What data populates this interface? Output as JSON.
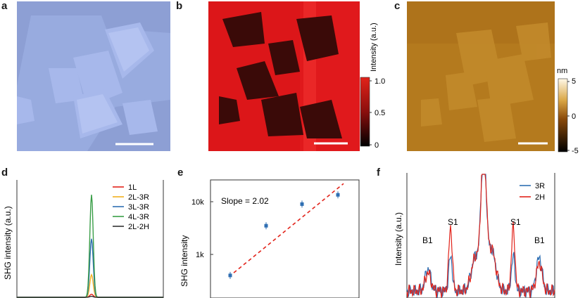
{
  "panels": {
    "a": {
      "label": "a"
    },
    "b": {
      "label": "b",
      "colorbar_title": "Intensity (a.u.)",
      "ticks": [
        "1.0",
        "0.5",
        "0"
      ]
    },
    "c": {
      "label": "c",
      "colorbar_title": "nm",
      "ticks": [
        "5",
        "0",
        "-5"
      ]
    },
    "d": {
      "label": "d"
    },
    "e": {
      "label": "e"
    },
    "f": {
      "label": "f"
    }
  },
  "colors": {
    "optical_bg": "#8d9fd4",
    "raman_bg": "#e0191c",
    "afm_bg": "#b47a1e",
    "series_red": "#e2231a",
    "series_orange": "#f2b01e",
    "series_blue": "#2f6fb3",
    "series_green": "#3a9e48",
    "series_dark": "#333333"
  },
  "chart_data": [
    {
      "panel": "d",
      "type": "line",
      "xlabel": "",
      "ylabel": "SHG intensity (a.u.)",
      "series": [
        {
          "name": "1L",
          "color": "#e2231a",
          "peak": 0.03
        },
        {
          "name": "2L-3R",
          "color": "#f2b01e",
          "peak": 0.22
        },
        {
          "name": "3L-3R",
          "color": "#2f6fb3",
          "peak": 0.57
        },
        {
          "name": "4L-3R",
          "color": "#3a9e48",
          "peak": 1.0
        },
        {
          "name": "2L-2H",
          "color": "#333333",
          "peak": 0.01
        }
      ]
    },
    {
      "panel": "e",
      "type": "scatter",
      "ylabel": "SHG intensity",
      "yscale": "log",
      "yticks": [
        "10k",
        "1k"
      ],
      "annotation": "Slope = 2.02",
      "x": [
        1,
        2,
        3,
        4
      ],
      "y": [
        400,
        3500,
        9000,
        13500
      ],
      "fit": "dashed red power-law"
    },
    {
      "panel": "f",
      "type": "line",
      "ylabel": "Intensity (a.u.)",
      "series": [
        {
          "name": "3R",
          "color": "#2f6fb3"
        },
        {
          "name": "2H",
          "color": "#e2231a"
        }
      ],
      "annotations": [
        "B1",
        "S1",
        "S1",
        "B1"
      ]
    }
  ]
}
